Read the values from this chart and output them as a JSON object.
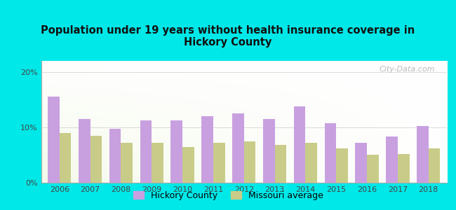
{
  "title": "Population under 19 years without health insurance coverage in\nHickory County",
  "years": [
    2006,
    2007,
    2008,
    2009,
    2010,
    2011,
    2012,
    2013,
    2014,
    2015,
    2016,
    2017,
    2018
  ],
  "hickory": [
    15.5,
    11.5,
    9.7,
    11.2,
    11.3,
    12.0,
    12.5,
    11.5,
    13.8,
    10.8,
    7.2,
    8.3,
    10.2
  ],
  "missouri": [
    9.0,
    8.5,
    7.2,
    7.2,
    6.5,
    7.2,
    7.5,
    6.8,
    7.2,
    6.2,
    5.0,
    5.2,
    6.2
  ],
  "hickory_color": "#c8a0e0",
  "missouri_color": "#c8cc88",
  "bg_outer": "#00e8e8",
  "ylim": [
    0,
    22
  ],
  "yticks": [
    0,
    10,
    20
  ],
  "ytick_labels": [
    "0%",
    "10%",
    "20%"
  ],
  "bar_width": 0.38,
  "legend_hickory": "Hickory County",
  "legend_missouri": "Missouri average",
  "watermark": "City-Data.com"
}
